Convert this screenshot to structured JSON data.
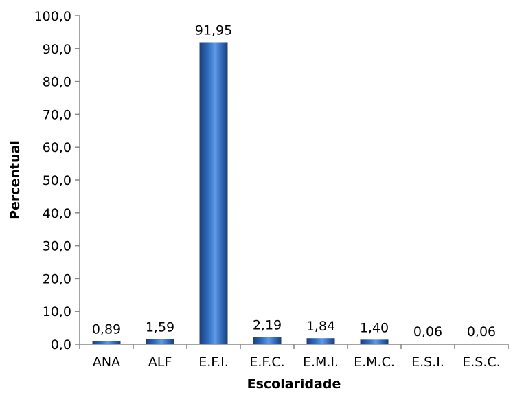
{
  "chart_data": {
    "type": "bar",
    "title": "",
    "xlabel": "Escolaridade",
    "ylabel": "Percentual",
    "categories": [
      "ANA",
      "ALF",
      "E.F.I.",
      "E.F.C.",
      "E.M.I.",
      "E.M.C.",
      "E.S.I.",
      "E.S.C."
    ],
    "values": [
      0.89,
      1.59,
      91.95,
      2.19,
      1.84,
      1.4,
      0.06,
      0.06
    ],
    "value_labels": [
      "0,89",
      "1,59",
      "91,95",
      "2,19",
      "1,84",
      "1,40",
      "0,06",
      "0,06"
    ],
    "ylim": [
      0,
      100
    ],
    "yticks": [
      0,
      10,
      20,
      30,
      40,
      50,
      60,
      70,
      80,
      90,
      100
    ],
    "ytick_labels": [
      "0,0",
      "10,0",
      "20,0",
      "30,0",
      "40,0",
      "50,0",
      "60,0",
      "70,0",
      "80,0",
      "90,0",
      "100,0"
    ],
    "grid": false,
    "legend": "none",
    "bar_color": "#2e6bb5"
  }
}
